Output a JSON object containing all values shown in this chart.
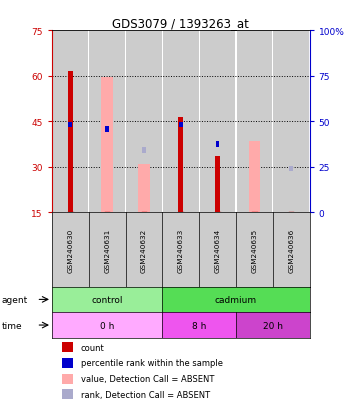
{
  "title": "GDS3079 / 1393263_at",
  "samples": [
    "GSM240630",
    "GSM240631",
    "GSM240632",
    "GSM240633",
    "GSM240634",
    "GSM240635",
    "GSM240636"
  ],
  "red_bars": [
    61.5,
    0,
    0,
    46.5,
    33.5,
    0,
    0
  ],
  "red_base": [
    15,
    15,
    15,
    15,
    15,
    15,
    15
  ],
  "pink_bars": [
    0,
    59.5,
    31.0,
    0,
    0,
    38.5,
    0
  ],
  "pink_base": [
    0,
    15,
    15,
    0,
    0,
    15,
    0
  ],
  "blue_squares": [
    44.0,
    42.5,
    0,
    44.0,
    37.5,
    0,
    0
  ],
  "lightblue_squares": [
    0,
    0,
    35.5,
    0,
    0,
    0,
    29.5
  ],
  "ylim_left": [
    15,
    75
  ],
  "ylim_right": [
    0,
    100
  ],
  "yticks_left": [
    15,
    30,
    45,
    60,
    75
  ],
  "yticks_right": [
    0,
    25,
    50,
    75,
    100
  ],
  "ytick_labels_left": [
    "15",
    "30",
    "45",
    "60",
    "75"
  ],
  "ytick_labels_right": [
    "0",
    "25",
    "50",
    "75",
    "100%"
  ],
  "left_axis_color": "#cc0000",
  "right_axis_color": "#0000cc",
  "bar_bg_color": "#cccccc",
  "red_bar_color": "#cc0000",
  "pink_bar_color": "#ffaaaa",
  "blue_sq_color": "#0000cc",
  "lightblue_sq_color": "#aaaacc",
  "agent_control_color": "#99ee99",
  "agent_cadmium_color": "#55dd55",
  "time_0h_color": "#ffaaff",
  "time_8h_color": "#ee55ee",
  "time_20h_color": "#cc44cc",
  "legend_items": [
    {
      "color": "#cc0000",
      "label": "count"
    },
    {
      "color": "#0000cc",
      "label": "percentile rank within the sample"
    },
    {
      "color": "#ffaaaa",
      "label": "value, Detection Call = ABSENT"
    },
    {
      "color": "#aaaacc",
      "label": "rank, Detection Call = ABSENT"
    }
  ]
}
